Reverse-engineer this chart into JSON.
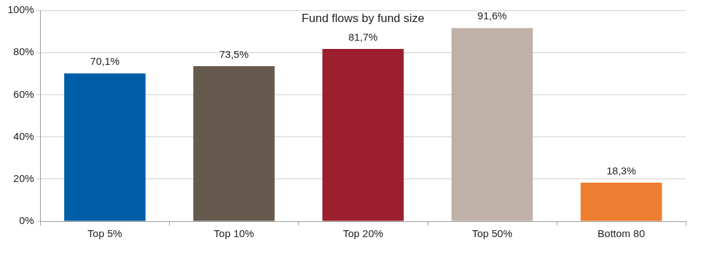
{
  "chart_data": {
    "type": "bar",
    "title": "Fund flows by fund size",
    "categories": [
      "Top 5%",
      "Top 10%",
      "Top 20%",
      "Top 50%",
      "Bottom 80"
    ],
    "values": [
      70.1,
      73.5,
      81.7,
      91.6,
      18.3
    ],
    "colors": [
      "#005ea8",
      "#665a4e",
      "#9b1f2e",
      "#bfb1a8",
      "#ed7d31"
    ],
    "value_labels": [
      "70,1%",
      "73,5%",
      "81,7%",
      "91,6%",
      "18,3%"
    ],
    "ylim": [
      0,
      100
    ],
    "yticks": [
      {
        "value": 0,
        "label": "0%"
      },
      {
        "value": 20,
        "label": "20%"
      },
      {
        "value": 40,
        "label": "40%"
      },
      {
        "value": 60,
        "label": "60%"
      },
      {
        "value": 80,
        "label": "80%"
      },
      {
        "value": 100,
        "label": "100%"
      }
    ],
    "grid": "y",
    "legend": false
  }
}
